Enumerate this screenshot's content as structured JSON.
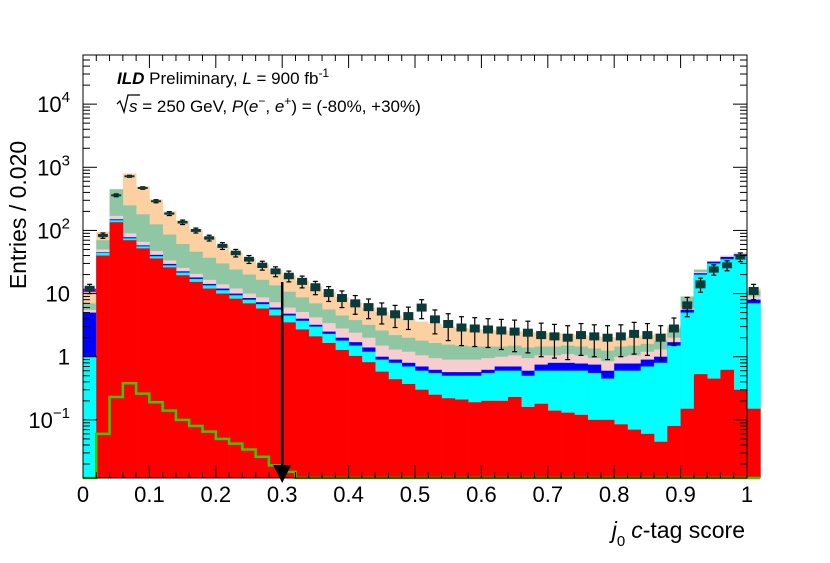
{
  "chart_data": {
    "type": "stacked-histogram",
    "xlabel_var": "j",
    "xlabel_sub": "0",
    "xlabel_rest": " c-tag score",
    "ylabel": "Entries / 0.020",
    "xlim": [
      0,
      1
    ],
    "ylim": [
      0.012,
      60000
    ],
    "log_y": true,
    "x_ticks": [
      "0",
      "0.1",
      "0.2",
      "0.3",
      "0.4",
      "0.5",
      "0.6",
      "0.7",
      "0.8",
      "0.9",
      "1"
    ],
    "y_ticks": [
      {
        "value": 0.1,
        "base": "10",
        "exp": "−1"
      },
      {
        "value": 1,
        "base": "1",
        "exp": ""
      },
      {
        "value": 10,
        "base": "10",
        "exp": ""
      },
      {
        "value": 100,
        "base": "10",
        "exp": "2"
      },
      {
        "value": 1000,
        "base": "10",
        "exp": "3"
      },
      {
        "value": 10000,
        "base": "10",
        "exp": "4"
      }
    ],
    "annotation": {
      "line1_bold": "ILD",
      "line1_a": " Preliminary, ",
      "line1_L": "L",
      "line1_b": " = 900 fb",
      "line1_exp": "-1",
      "line2_a": "s",
      "line2_b": " = 250 GeV, ",
      "line2_P": "P",
      "line2_c": "(",
      "line2_e1": "e",
      "line2_sup1": "−",
      "line2_d": ", ",
      "line2_e2": "e",
      "line2_sup2": "+",
      "line2_f": ") = (-80%, +30%)"
    },
    "cut_x": 0.3,
    "bin_edges_start": 0,
    "bin_width": 0.02,
    "colors": {
      "red": "#ff0000",
      "cyan": "#00ffff",
      "blue": "#0000ff",
      "pink": "#f7cdd0",
      "green": "#8fc7a5",
      "peach": "#fdd0a2",
      "magenta": "#cc00cc",
      "signal": "#33cc00",
      "data": "#0b3a3a"
    },
    "stack_totals": {
      "red": [
        0.012,
        40,
        135,
        70,
        52,
        36,
        26,
        19.5,
        15.3,
        12,
        10,
        8.3,
        7,
        5.8,
        4.5,
        3.5,
        2.7,
        2.1,
        1.65,
        1.28,
        1.03,
        0.82,
        0.58,
        0.44,
        0.37,
        0.3,
        0.25,
        0.22,
        0.21,
        0.19,
        0.2,
        0.2,
        0.23,
        0.16,
        0.18,
        0.14,
        0.13,
        0.12,
        0.1,
        0.1,
        0.085,
        0.07,
        0.06,
        0.045,
        0.08,
        0.15,
        0.53,
        0.45,
        0.62,
        0.3,
        0.15
      ],
      "cyan": [
        1.0,
        44,
        145,
        75,
        56,
        39,
        28,
        21.5,
        17,
        13.5,
        11.3,
        9.4,
        8,
        6.8,
        5.6,
        4.5,
        3.7,
        3,
        2.3,
        1.8,
        1.5,
        1.2,
        0.9,
        0.8,
        0.7,
        0.6,
        0.55,
        0.5,
        0.5,
        0.5,
        0.55,
        0.6,
        0.6,
        0.5,
        0.6,
        0.6,
        0.6,
        0.6,
        0.55,
        0.45,
        0.6,
        0.6,
        0.7,
        0.8,
        1.5,
        5,
        20,
        30,
        35,
        40,
        7
      ],
      "blue": [
        5,
        45,
        150,
        78,
        58,
        41,
        29.5,
        22.5,
        18,
        14.2,
        12,
        10,
        8.5,
        7.3,
        6,
        4.8,
        4,
        3.2,
        2.5,
        2,
        1.7,
        1.4,
        1.0,
        0.9,
        0.8,
        0.7,
        0.62,
        0.57,
        0.57,
        0.57,
        0.62,
        0.7,
        0.7,
        0.6,
        0.75,
        0.8,
        0.8,
        0.78,
        0.75,
        0.6,
        0.78,
        0.78,
        0.9,
        1.0,
        1.7,
        5.5,
        21,
        32,
        38,
        42,
        8
      ],
      "pink": [
        5.5,
        50,
        170,
        90,
        66,
        47,
        33.5,
        25.5,
        20.5,
        16.5,
        14,
        12,
        10,
        8.7,
        7.3,
        6,
        5.1,
        4.2,
        3.4,
        2.8,
        2.4,
        2.0,
        1.5,
        1.3,
        1.2,
        1.05,
        0.95,
        0.9,
        0.9,
        0.9,
        0.95,
        1.0,
        1.05,
        0.95,
        1.05,
        1.05,
        1.1,
        1.05,
        0.95,
        0.85,
        1.0,
        1.05,
        1.2,
        1.3,
        2,
        6,
        22,
        33,
        40,
        45,
        9
      ],
      "green": [
        7,
        70,
        450,
        250,
        180,
        125,
        86,
        61,
        46,
        37,
        30,
        24,
        20,
        16.5,
        13.5,
        10.7,
        8.7,
        7,
        5.6,
        4.5,
        3.8,
        3.2,
        2.6,
        2.2,
        2.0,
        1.8,
        1.65,
        1.55,
        1.5,
        1.45,
        1.45,
        1.45,
        1.5,
        1.4,
        1.45,
        1.45,
        1.5,
        1.45,
        1.35,
        1.25,
        1.45,
        1.5,
        1.6,
        1.8,
        2.8,
        9,
        24,
        28,
        33,
        36,
        11
      ],
      "peach": [
        11,
        95,
        380,
        800,
        500,
        310,
        200,
        143,
        104,
        78,
        58,
        45,
        36,
        29,
        24,
        19.5,
        16,
        13,
        10.5,
        8.8,
        7.2,
        6.0,
        5.1,
        4.5,
        4.0,
        3.6,
        3.3,
        3.0,
        2.85,
        2.75,
        2.7,
        2.6,
        2.55,
        2.45,
        2.4,
        2.35,
        2.3,
        2.2,
        2.1,
        2.05,
        2.0,
        2.1,
        2.2,
        2.35,
        3.1,
        6.5,
        14,
        27,
        30,
        40,
        12
      ]
    },
    "magenta_first_bin": [
      10.5,
      12
    ],
    "data_points": [
      12,
      83,
      360,
      720,
      470,
      290,
      185,
      135,
      100,
      76,
      57,
      44,
      35,
      28,
      22.5,
      19,
      15.6,
      12.6,
      10.2,
      8.5,
      7,
      6.1,
      5.2,
      4.7,
      4.4,
      6,
      3.9,
      3.3,
      2.9,
      2.8,
      2.7,
      2.6,
      2.5,
      2.4,
      2.2,
      2.1,
      2.0,
      2.2,
      2.1,
      2.0,
      2.1,
      2.3,
      2.2,
      2.0,
      2.8,
      6.5,
      14,
      24,
      28,
      38,
      11
    ],
    "data_errors": [
      2,
      8,
      18,
      25,
      20,
      16,
      13,
      11,
      9,
      8,
      7,
      6,
      5,
      4.5,
      4,
      3.7,
      3.3,
      3,
      2.7,
      2.5,
      2.3,
      2.1,
      1.9,
      1.8,
      1.7,
      2,
      1.6,
      1.5,
      1.4,
      1.35,
      1.3,
      1.3,
      1.3,
      1.25,
      1.2,
      1.15,
      1.1,
      1.15,
      1.1,
      1.1,
      1.1,
      1.2,
      1.15,
      1.1,
      1.3,
      2.2,
      3.5,
      4.5,
      5,
      6,
      3
    ],
    "signal": [
      0.012,
      0.06,
      0.23,
      0.38,
      0.26,
      0.19,
      0.14,
      0.1,
      0.08,
      0.065,
      0.05,
      0.042,
      0.034,
      0.026,
      0.019,
      0.015,
      0.012,
      0.012,
      0.012,
      0.012,
      0.012,
      0.012,
      0.012,
      0.012,
      0.012,
      0.012,
      0.012,
      0.012,
      0.012,
      0.012,
      0.012,
      0.012,
      0.012,
      0.012,
      0.012,
      0.012,
      0.012,
      0.012,
      0.012,
      0.012,
      0.012,
      0.012,
      0.012,
      0.012,
      0.012,
      0.012,
      0.012,
      0.012,
      0.012,
      0.012,
      0.012
    ]
  }
}
